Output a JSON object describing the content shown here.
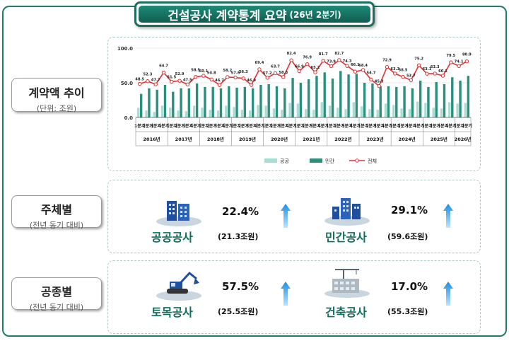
{
  "title": {
    "main": "건설공사 계약통계 요약",
    "sub": "(26년 2분기)"
  },
  "sections": {
    "trend": {
      "label": "계약액 추이",
      "unit": "(단위: 조원)"
    },
    "subject": {
      "label": "주체별",
      "note": "(전년 동기 대비)"
    },
    "work": {
      "label": "공종별",
      "note": "(전년 동기 대비)"
    }
  },
  "legend": {
    "public": "공공",
    "private": "민간",
    "total": "전체"
  },
  "subject_items": [
    {
      "name": "공공공사",
      "pct": "22.4%",
      "amount": "(21.3조원)",
      "icon": "building-icon"
    },
    {
      "name": "민간공사",
      "pct": "29.1%",
      "amount": "(59.6조원)",
      "icon": "city-icon"
    }
  ],
  "work_items": [
    {
      "name": "토목공사",
      "pct": "57.5%",
      "amount": "(25.5조원)",
      "icon": "excavator-icon"
    },
    {
      "name": "건축공사",
      "pct": "17.0%",
      "amount": "(55.3조원)",
      "icon": "construction-crane-icon"
    }
  ],
  "colors": {
    "accent": "#1b6e5f",
    "public": "#a8ddd4",
    "private": "#2a8f7c",
    "total": "#e03030",
    "arrow": "#2a9be0"
  },
  "chart_data": {
    "type": "bar",
    "ylim": [
      0,
      100
    ],
    "yticks": [
      "0.0",
      "50.0",
      "100.0"
    ],
    "quarter_labels": [
      "1분기",
      "2분기",
      "3분기",
      "4분기",
      "1분기",
      "2분기",
      "3분기",
      "4분기",
      "1분기",
      "2분기",
      "3분기",
      "4분기",
      "1분기",
      "2분기",
      "3분기",
      "4분기",
      "1분기",
      "2분기",
      "3분기",
      "4분기",
      "1분기",
      "2분기",
      "3분기",
      "4분기",
      "1분기",
      "2분기",
      "3분기",
      "4분기",
      "1분기",
      "2분기",
      "3분기",
      "4분기",
      "1분기",
      "2분기",
      "3분기",
      "4분기",
      "1분기",
      "2분기",
      "3분기",
      "4분기",
      "1분기",
      "2분기"
    ],
    "years": [
      "2016년",
      "2017년",
      "2018년",
      "2019년",
      "2020년",
      "2021년",
      "2022년",
      "2023년",
      "2024년",
      "2025년",
      "2026년"
    ],
    "series": [
      {
        "name": "공공",
        "type": "bar",
        "values": [
          14,
          10,
          8,
          17,
          14,
          10,
          9,
          17,
          14,
          11,
          10,
          17,
          15,
          11,
          10,
          18,
          17,
          13,
          11,
          21,
          20,
          12,
          11,
          22,
          17,
          14,
          12,
          22,
          16,
          12,
          11,
          20,
          18,
          13,
          12,
          23,
          21,
          14,
          13,
          22,
          20,
          21
        ]
      },
      {
        "name": "민간",
        "type": "bar",
        "values": [
          34,
          42,
          40,
          47,
          37,
          42,
          42,
          49,
          44,
          44,
          42,
          45,
          43,
          44,
          42,
          47,
          48,
          45,
          42,
          57,
          50,
          55,
          60,
          65,
          56,
          67,
          62,
          63,
          50,
          49,
          45,
          45,
          44,
          45,
          42,
          53,
          44,
          51,
          48,
          58,
          53,
          60
        ]
      },
      {
        "name": "전체",
        "type": "line",
        "values": [
          48.5,
          52.3,
          47.7,
          64.7,
          51.5,
          52.9,
          47.5,
          58.5,
          60.1,
          54.8,
          46.7,
          58.2,
          57.6,
          56.3,
          46.9,
          69.4,
          57.2,
          63.7,
          58.3,
          82.4,
          66.9,
          76.9,
          65.2,
          81.7,
          73.9,
          82.7,
          74.3,
          66.1,
          68.4,
          54.7,
          45.3,
          72.9,
          63.3,
          58.5,
          53.7,
          75.2,
          63.1,
          63.3,
          60.1,
          79.5,
          74.1,
          80.9
        ]
      }
    ],
    "value_labels": [
      "48.5",
      "52.3",
      "47.7",
      "64.7",
      "51.5",
      "52.9",
      "47.5",
      "58.5",
      "60.1",
      "54.8",
      "46.7",
      "58.2",
      "57.6",
      "56.3",
      "46.9",
      "69.4",
      "57.2",
      "63.7",
      "58.3",
      "82.4",
      "66.9",
      "76.9",
      "65.2",
      "81.7",
      "73.9",
      "82.7",
      "74.3",
      "66.1",
      "68.4",
      "54.7",
      "45.3",
      "72.9",
      "63.3",
      "58.5",
      "53.7",
      "75.2",
      "63.1",
      "63.3",
      "60.1",
      "79.5",
      "74.1",
      "80.9"
    ]
  }
}
